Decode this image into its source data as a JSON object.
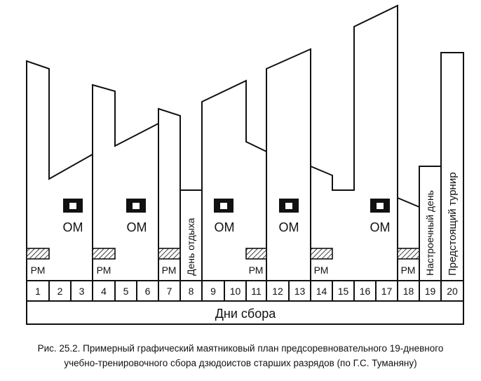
{
  "diagram": {
    "axis_label": "Дни сбора",
    "days": [
      "1",
      "2",
      "3",
      "4",
      "5",
      "6",
      "7",
      "8",
      "9",
      "10",
      "11",
      "12",
      "13",
      "14",
      "15",
      "16",
      "17",
      "18",
      "19",
      "20"
    ],
    "om_label": "ОМ",
    "rm_label": "РМ",
    "rest_day_label": "День отдыха",
    "tuning_day_label": "Настроечный день",
    "tournament_label": "Предстоящий турнир"
  },
  "caption": {
    "line1": "Рис. 25.2. Примерный графический маятниковый план предсоревновательного 19-дневного",
    "line2": "учебно-тренировочного сбора дзюдоистов старших разрядов (по Г.С. Туманяну)"
  }
}
